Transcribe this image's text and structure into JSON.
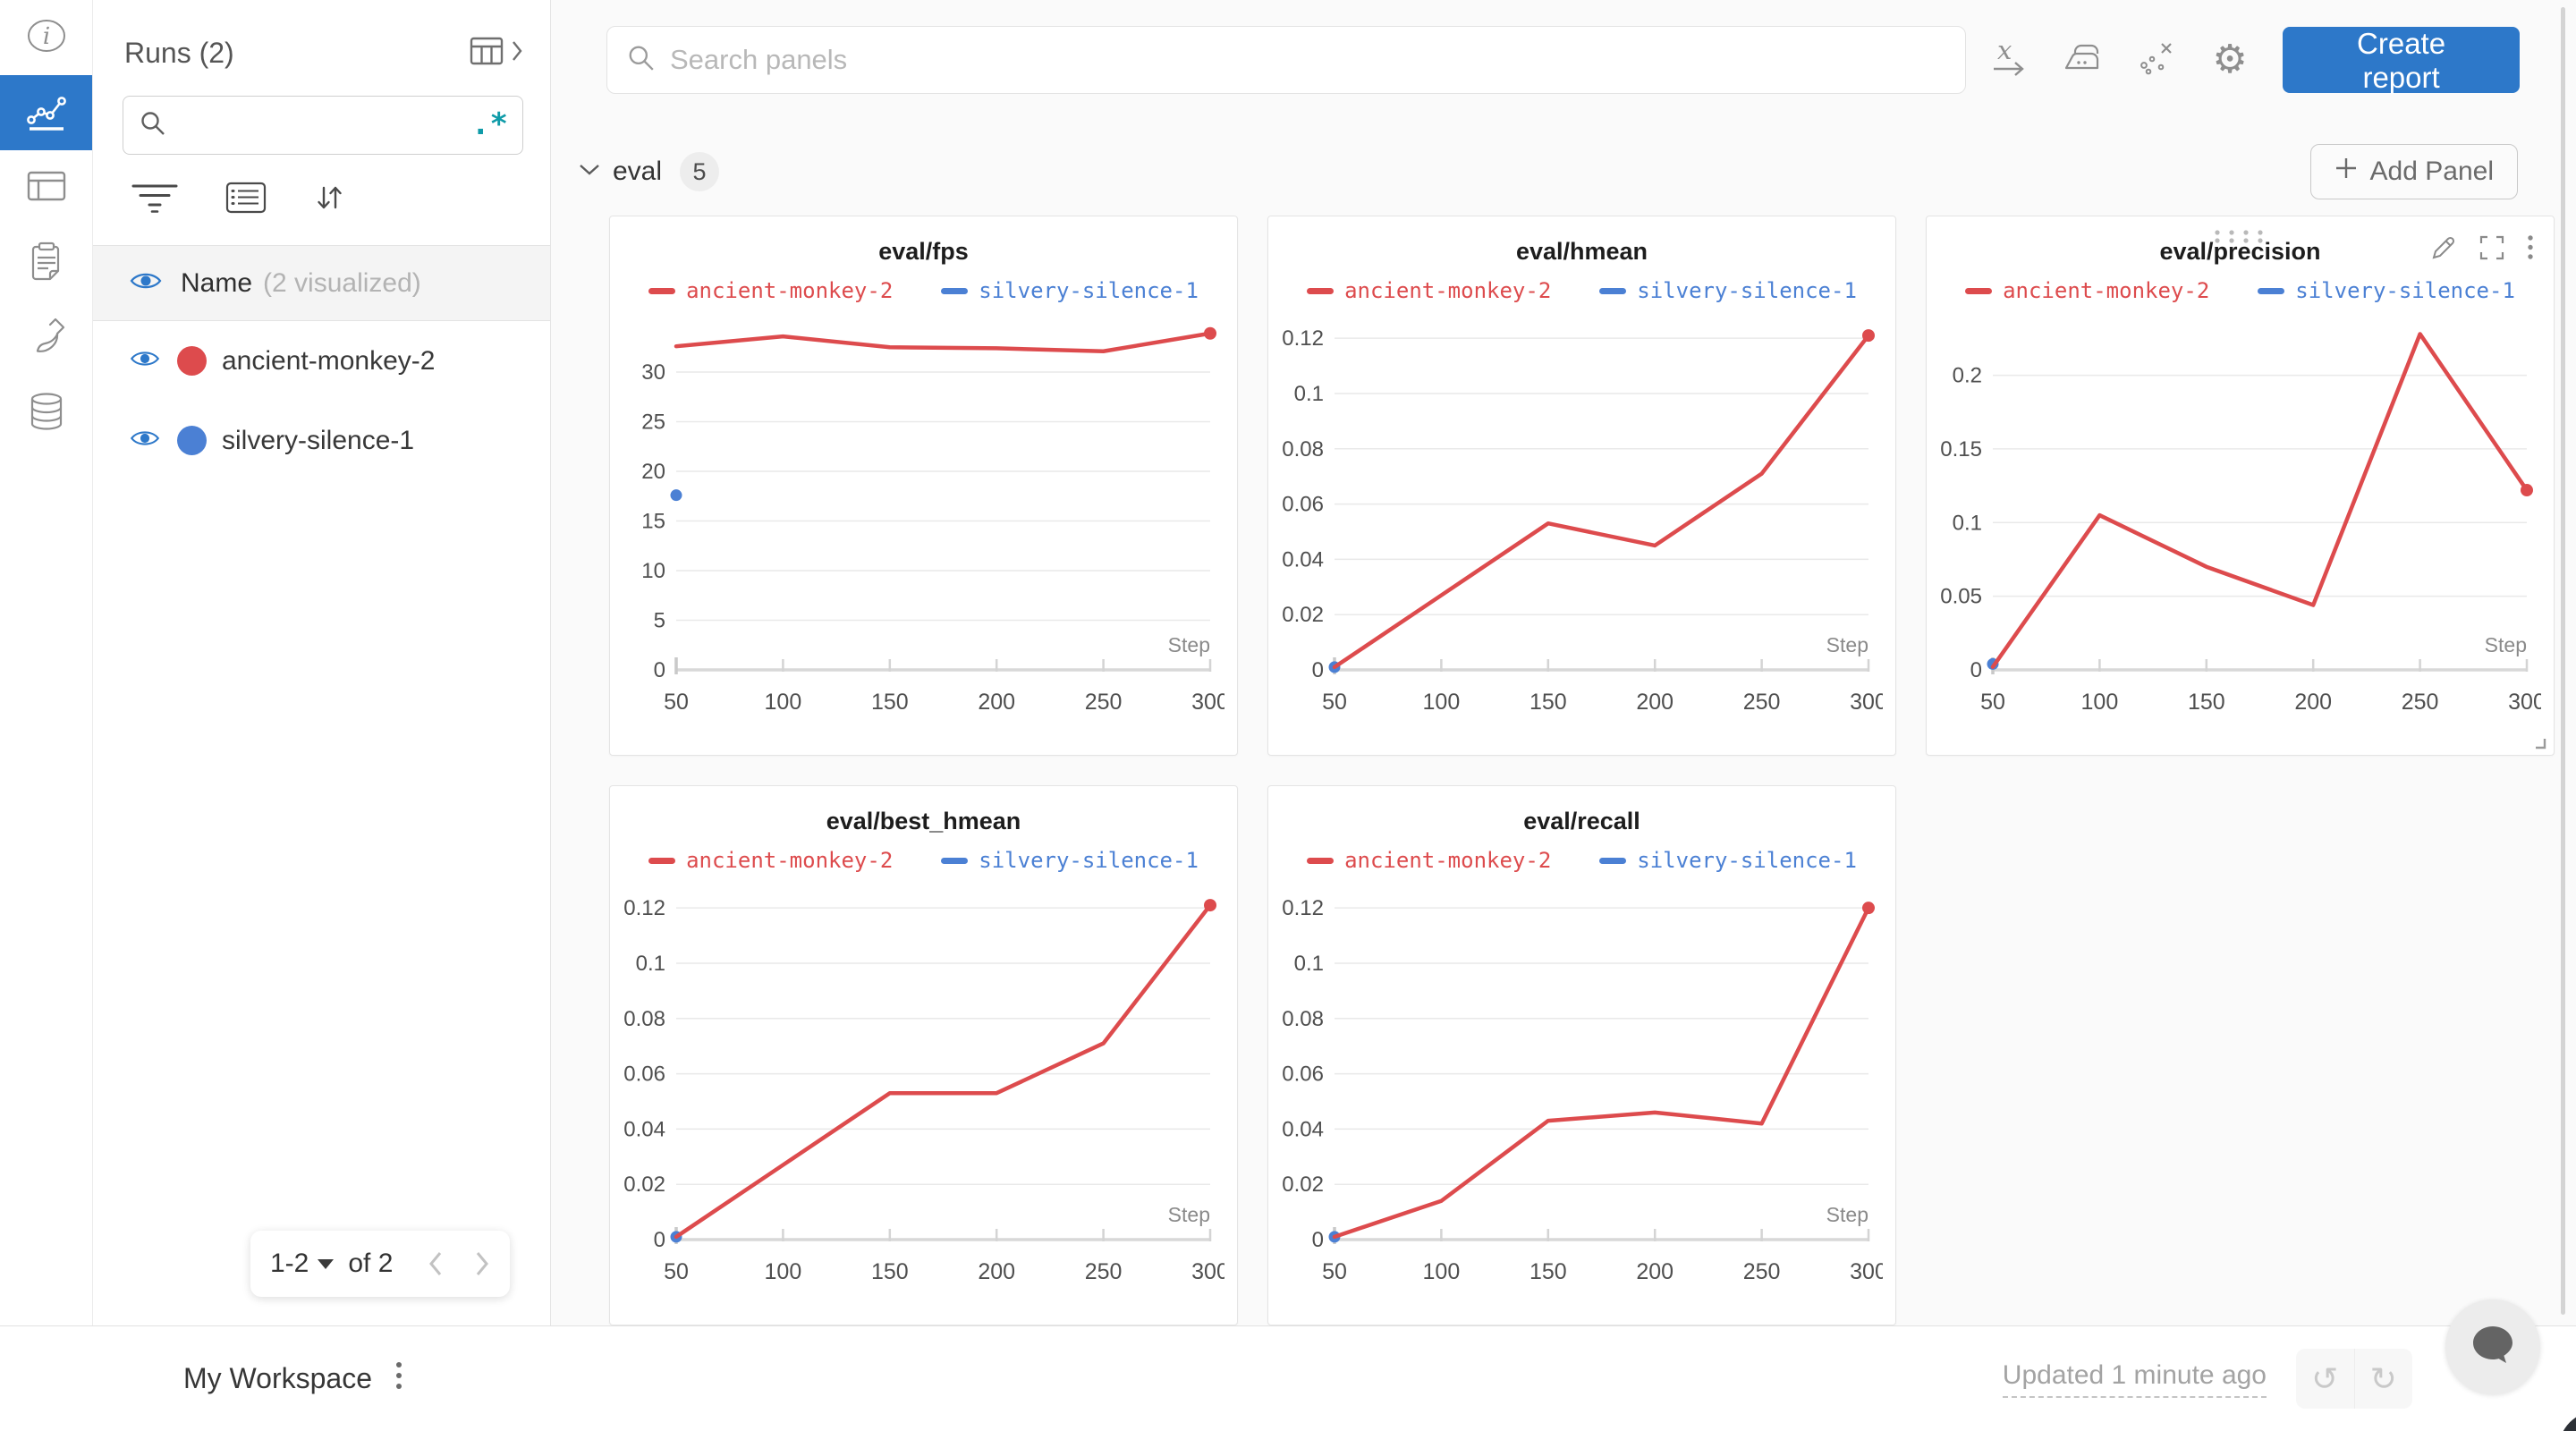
{
  "colors": {
    "accent_blue": "#2d78c9",
    "run_red": "#dd4b4d",
    "run_blue": "#4b80d4",
    "regex_teal": "#0f9ba8"
  },
  "rail": {
    "items": [
      {
        "icon": "info-icon",
        "active": false
      },
      {
        "icon": "line-chart-icon",
        "active": true
      },
      {
        "icon": "table-icon",
        "active": false
      },
      {
        "icon": "clipboard-icon",
        "active": false
      },
      {
        "icon": "brush-icon",
        "active": false
      },
      {
        "icon": "database-icon",
        "active": false
      }
    ]
  },
  "runs_panel": {
    "title": "Runs (2)",
    "search_value": "",
    "regex_label": ".*",
    "header": {
      "label": "Name",
      "sub_label": "(2 visualized)"
    },
    "runs": [
      {
        "name": "ancient-monkey-2",
        "color": "#dd4b4d"
      },
      {
        "name": "silvery-silence-1",
        "color": "#4b80d4"
      }
    ],
    "pagination": {
      "range_label": "1-2",
      "of_label": "of 2"
    }
  },
  "topbar": {
    "search_placeholder": "Search panels",
    "create_report_label": "Create report"
  },
  "section": {
    "title": "eval",
    "count": "5",
    "add_panel_label": "Add Panel"
  },
  "footer": {
    "workspace_label": "My Workspace",
    "updated_label": "Updated 1 minute ago"
  },
  "chart_data": [
    {
      "type": "line",
      "title": "eval/fps",
      "xlabel": "Step",
      "xlim": [
        50,
        300
      ],
      "xticks": [
        50,
        100,
        150,
        200,
        250,
        300
      ],
      "ytick_values": [
        0,
        5,
        10,
        15,
        20,
        25,
        30
      ],
      "ytick_labels": [
        "0",
        "5",
        "10",
        "15",
        "20",
        "25",
        "30"
      ],
      "ymax": 35.5,
      "grid": true,
      "legend": [
        {
          "name": "ancient-monkey-2",
          "color": "#dd4b4d"
        },
        {
          "name": "silvery-silence-1",
          "color": "#4b80d4"
        }
      ],
      "series": [
        {
          "name": "silvery-silence-1",
          "color": "#4b80d4",
          "points": [
            [
              50,
              17.6
            ]
          ]
        },
        {
          "name": "ancient-monkey-2",
          "color": "#dd4b4d",
          "points": [
            [
              50,
              32.6
            ],
            [
              100,
              33.6
            ],
            [
              150,
              32.5
            ],
            [
              200,
              32.4
            ],
            [
              250,
              32.1
            ],
            [
              300,
              33.9
            ]
          ],
          "end_dot": true
        }
      ],
      "hovered": false
    },
    {
      "type": "line",
      "title": "eval/hmean",
      "xlabel": "Step",
      "xlim": [
        50,
        300
      ],
      "xticks": [
        50,
        100,
        150,
        200,
        250,
        300
      ],
      "ytick_values": [
        0,
        0.02,
        0.04,
        0.06,
        0.08,
        0.1,
        0.12
      ],
      "ytick_labels": [
        "0",
        "0.02",
        "0.04",
        "0.06",
        "0.08",
        "0.1",
        "0.12"
      ],
      "ymax": 0.1275,
      "grid": true,
      "legend": [
        {
          "name": "ancient-monkey-2",
          "color": "#dd4b4d"
        },
        {
          "name": "silvery-silence-1",
          "color": "#4b80d4"
        }
      ],
      "series": [
        {
          "name": "silvery-silence-1",
          "color": "#4b80d4",
          "points": [
            [
              50,
              0.001
            ]
          ]
        },
        {
          "name": "ancient-monkey-2",
          "color": "#dd4b4d",
          "points": [
            [
              50,
              0.001
            ],
            [
              100,
              0.027
            ],
            [
              150,
              0.053
            ],
            [
              200,
              0.045
            ],
            [
              250,
              0.071
            ],
            [
              300,
              0.121
            ]
          ],
          "end_dot": true
        }
      ],
      "hovered": false
    },
    {
      "type": "line",
      "title": "eval/precision",
      "xlabel": "Step",
      "xlim": [
        50,
        300
      ],
      "xticks": [
        50,
        100,
        150,
        200,
        250,
        300
      ],
      "ytick_values": [
        0,
        0.05,
        0.1,
        0.15,
        0.2
      ],
      "ytick_labels": [
        "0",
        "0.05",
        "0.1",
        "0.15",
        "0.2"
      ],
      "ymax": 0.2392,
      "grid": true,
      "legend": [
        {
          "name": "ancient-monkey-2",
          "color": "#dd4b4d"
        },
        {
          "name": "silvery-silence-1",
          "color": "#4b80d4"
        }
      ],
      "series": [
        {
          "name": "silvery-silence-1",
          "color": "#4b80d4",
          "points": [
            [
              50,
              0.004
            ]
          ]
        },
        {
          "name": "ancient-monkey-2",
          "color": "#dd4b4d",
          "points": [
            [
              50,
              0.002
            ],
            [
              100,
              0.105
            ],
            [
              150,
              0.07
            ],
            [
              200,
              0.044
            ],
            [
              250,
              0.228
            ],
            [
              300,
              0.122
            ]
          ],
          "end_dot": true
        }
      ],
      "hovered": true
    },
    {
      "type": "line",
      "title": "eval/best_hmean",
      "xlabel": "Step",
      "xlim": [
        50,
        300
      ],
      "xticks": [
        50,
        100,
        150,
        200,
        250,
        300
      ],
      "ytick_values": [
        0,
        0.02,
        0.04,
        0.06,
        0.08,
        0.1,
        0.12
      ],
      "ytick_labels": [
        "0",
        "0.02",
        "0.04",
        "0.06",
        "0.08",
        "0.1",
        "0.12"
      ],
      "ymax": 0.1275,
      "grid": true,
      "legend": [
        {
          "name": "ancient-monkey-2",
          "color": "#dd4b4d"
        },
        {
          "name": "silvery-silence-1",
          "color": "#4b80d4"
        }
      ],
      "series": [
        {
          "name": "silvery-silence-1",
          "color": "#4b80d4",
          "points": [
            [
              50,
              0.001
            ]
          ]
        },
        {
          "name": "ancient-monkey-2",
          "color": "#dd4b4d",
          "points": [
            [
              50,
              0.001
            ],
            [
              100,
              0.027
            ],
            [
              150,
              0.053
            ],
            [
              200,
              0.053
            ],
            [
              250,
              0.071
            ],
            [
              300,
              0.121
            ]
          ],
          "end_dot": true
        }
      ],
      "hovered": false
    },
    {
      "type": "line",
      "title": "eval/recall",
      "xlabel": "Step",
      "xlim": [
        50,
        300
      ],
      "xticks": [
        50,
        100,
        150,
        200,
        250,
        300
      ],
      "ytick_values": [
        0,
        0.02,
        0.04,
        0.06,
        0.08,
        0.1,
        0.12
      ],
      "ytick_labels": [
        "0",
        "0.02",
        "0.04",
        "0.06",
        "0.08",
        "0.1",
        "0.12"
      ],
      "ymax": 0.1275,
      "grid": true,
      "legend": [
        {
          "name": "ancient-monkey-2",
          "color": "#dd4b4d"
        },
        {
          "name": "silvery-silence-1",
          "color": "#4b80d4"
        }
      ],
      "series": [
        {
          "name": "silvery-silence-1",
          "color": "#4b80d4",
          "points": [
            [
              50,
              0.001
            ]
          ]
        },
        {
          "name": "ancient-monkey-2",
          "color": "#dd4b4d",
          "points": [
            [
              50,
              0.001
            ],
            [
              100,
              0.014
            ],
            [
              150,
              0.043
            ],
            [
              200,
              0.046
            ],
            [
              250,
              0.042
            ],
            [
              300,
              0.12
            ]
          ],
          "end_dot": true
        }
      ],
      "hovered": false
    }
  ]
}
